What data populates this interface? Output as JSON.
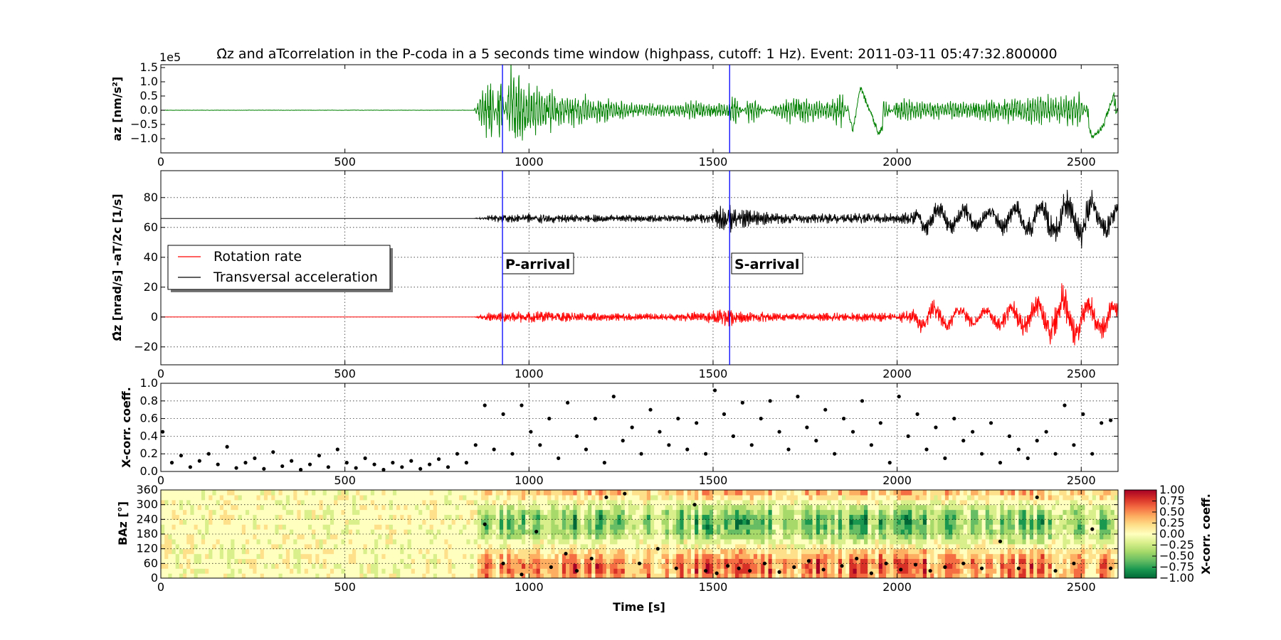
{
  "chart_data": [
    {
      "type": "line",
      "panel": "vertical-acceleration",
      "title": "Ω̇z and aTcorrelation in the P-coda in a 5 seconds time window (highpass, cutoff: 1 Hz). Event: 2011-03-11 05:47:32.800000",
      "ylabel": "az [nm/s²]",
      "offset_label": "1e5",
      "xlim": [
        0,
        2600
      ],
      "ylim": [
        -1.5,
        1.6
      ],
      "x_ticks": [
        "0",
        "500",
        "1000",
        "1500",
        "2000",
        "2500"
      ],
      "y_ticks": [
        "−1.0",
        "−0.5",
        "0.0",
        "0.5",
        "1.0",
        "1.5"
      ],
      "vlines_x": [
        928,
        1545
      ],
      "line_color": "#008000",
      "series": [
        {
          "x": [
            0,
            850,
            870,
            900,
            920,
            950,
            1000,
            1100,
            1200,
            1300,
            1400,
            1450,
            1500,
            1545,
            1560,
            1600,
            1700,
            1800,
            1850,
            1880,
            1900,
            1950,
            2000,
            2100,
            2200,
            2300,
            2400,
            2450,
            2500,
            2530,
            2560,
            2590,
            2600
          ],
          "y": [
            0,
            0,
            0.6,
            1.3,
            -1.4,
            1.5,
            0.9,
            0.6,
            0.4,
            0.25,
            0.2,
            0.3,
            0.25,
            0.3,
            0.6,
            -0.5,
            0.5,
            0.3,
            0.6,
            -0.8,
            0.9,
            -0.9,
            0.4,
            0.3,
            0.3,
            0.4,
            0.5,
            0.4,
            0.6,
            -1.1,
            -0.6,
            0.7,
            0.0
          ]
        }
      ]
    },
    {
      "type": "line",
      "panel": "rotation-vs-transverse",
      "ylabel": "Ω̇z [nrad/s] -aT/2c [1/s]",
      "xlim": [
        0,
        2600
      ],
      "ylim": [
        -32,
        98
      ],
      "grid": true,
      "x_ticks": [
        "0",
        "500",
        "1000",
        "1500",
        "2000",
        "2500"
      ],
      "y_ticks": [
        "−20",
        "0",
        "20",
        "40",
        "60",
        "80"
      ],
      "legend_placement": "center-left",
      "legend": [
        "Rotation rate",
        "Transversal acceleration"
      ],
      "annotations": [
        "P-arrival",
        "S-arrival"
      ],
      "vlines_x": [
        928,
        1545
      ],
      "series": [
        {
          "name": "Transversal acceleration",
          "color": "#000000",
          "baseline": 66,
          "x": [
            0,
            850,
            900,
            1000,
            1200,
            1400,
            1500,
            1520,
            1545,
            1560,
            1700,
            2000,
            2080,
            2150,
            2250,
            2350,
            2400,
            2450,
            2480,
            2500,
            2550,
            2600
          ],
          "amp": [
            0,
            0,
            3,
            4,
            3,
            3,
            4,
            10,
            12,
            8,
            4,
            4,
            8,
            7,
            6,
            9,
            10,
            14,
            12,
            14,
            10,
            8
          ]
        },
        {
          "name": "Rotation rate",
          "color": "#ff0000",
          "baseline": 0,
          "x": [
            0,
            850,
            900,
            1000,
            1200,
            1400,
            1500,
            1520,
            1545,
            1560,
            1700,
            2000,
            2080,
            2150,
            2250,
            2350,
            2400,
            2450,
            2480,
            2500,
            2550,
            2600
          ],
          "amp": [
            0,
            0,
            4,
            5,
            3,
            3,
            5,
            7,
            8,
            5,
            3,
            4,
            8,
            6,
            5,
            9,
            10,
            14,
            12,
            14,
            10,
            8
          ]
        }
      ]
    },
    {
      "type": "scatter",
      "panel": "correlation-coefficient",
      "ylabel": "X-corr. coeff.",
      "xlim": [
        0,
        2600
      ],
      "ylim": [
        0,
        1.0
      ],
      "grid": true,
      "x_ticks": [
        "0",
        "500",
        "1000",
        "1500",
        "2000",
        "2500"
      ],
      "y_ticks": [
        "0.0",
        "0.2",
        "0.4",
        "0.6",
        "0.8",
        "1.0"
      ],
      "point_color": "#000000",
      "x": [
        5,
        30,
        55,
        80,
        105,
        130,
        155,
        180,
        205,
        230,
        255,
        280,
        305,
        330,
        355,
        380,
        405,
        430,
        455,
        480,
        505,
        530,
        555,
        580,
        605,
        630,
        655,
        680,
        705,
        730,
        755,
        780,
        805,
        830,
        855,
        880,
        905,
        930,
        955,
        980,
        1005,
        1030,
        1055,
        1080,
        1105,
        1130,
        1155,
        1180,
        1205,
        1230,
        1255,
        1280,
        1305,
        1330,
        1355,
        1380,
        1405,
        1430,
        1455,
        1480,
        1505,
        1530,
        1555,
        1580,
        1605,
        1630,
        1655,
        1680,
        1705,
        1730,
        1755,
        1780,
        1805,
        1830,
        1855,
        1880,
        1905,
        1930,
        1955,
        1980,
        2005,
        2030,
        2055,
        2080,
        2105,
        2130,
        2155,
        2180,
        2205,
        2230,
        2255,
        2280,
        2305,
        2330,
        2355,
        2380,
        2405,
        2430,
        2455,
        2480,
        2505,
        2530,
        2555,
        2580
      ],
      "y": [
        0.45,
        0.1,
        0.18,
        0.05,
        0.12,
        0.2,
        0.08,
        0.28,
        0.04,
        0.1,
        0.15,
        0.03,
        0.22,
        0.06,
        0.12,
        0.02,
        0.08,
        0.18,
        0.05,
        0.25,
        0.1,
        0.04,
        0.15,
        0.08,
        0.02,
        0.1,
        0.05,
        0.12,
        0.03,
        0.08,
        0.14,
        0.05,
        0.2,
        0.1,
        0.3,
        0.75,
        0.25,
        0.65,
        0.2,
        0.75,
        0.45,
        0.3,
        0.6,
        0.15,
        0.78,
        0.4,
        0.25,
        0.6,
        0.1,
        0.85,
        0.35,
        0.5,
        0.2,
        0.7,
        0.45,
        0.3,
        0.6,
        0.25,
        0.55,
        0.2,
        0.92,
        0.65,
        0.4,
        0.78,
        0.3,
        0.6,
        0.8,
        0.45,
        0.25,
        0.85,
        0.5,
        0.35,
        0.7,
        0.2,
        0.6,
        0.45,
        0.8,
        0.3,
        0.55,
        0.1,
        0.85,
        0.4,
        0.65,
        0.25,
        0.5,
        0.15,
        0.6,
        0.35,
        0.45,
        0.2,
        0.55,
        0.1,
        0.4,
        0.25,
        0.15,
        0.35,
        0.45,
        0.2,
        0.75,
        0.3,
        0.65,
        0.2,
        0.55,
        0.58
      ]
    },
    {
      "type": "heatmap",
      "panel": "backazimuth-correlation",
      "ylabel": "BAz [°]",
      "xlabel": "Time [s]",
      "xlim": [
        0,
        2600
      ],
      "ylim": [
        0,
        360
      ],
      "x_ticks": [
        "0",
        "500",
        "1000",
        "1500",
        "2000",
        "2500"
      ],
      "y_ticks": [
        "0",
        "60",
        "120",
        "180",
        "240",
        "300",
        "360"
      ],
      "colorbar_label": "X-corr. coeff.",
      "colorbar_range": [
        -1.0,
        1.0
      ],
      "colorbar_ticks": [
        "1.00",
        "0.75",
        "0.50",
        "0.25",
        "0.00",
        "−0.25",
        "−0.50",
        "−0.75",
        "−1.00"
      ],
      "colormap": [
        "#006837",
        "#1a9850",
        "#66bd63",
        "#a6d96a",
        "#d9ef8b",
        "#ffffbf",
        "#fee08b",
        "#fdae61",
        "#f46d43",
        "#d73027",
        "#a50026"
      ],
      "maxima_x": [
        880,
        930,
        980,
        1020,
        1060,
        1100,
        1130,
        1170,
        1210,
        1260,
        1300,
        1350,
        1400,
        1450,
        1480,
        1510,
        1540,
        1570,
        1600,
        1640,
        1680,
        1720,
        1760,
        1800,
        1850,
        1890,
        1930,
        1970,
        2010,
        2050,
        2090,
        2130,
        2180,
        2230,
        2280,
        2330,
        2380,
        2430,
        2480,
        2530,
        2580
      ],
      "maxima_y": [
        220,
        60,
        15,
        190,
        45,
        100,
        30,
        80,
        330,
        345,
        60,
        120,
        40,
        300,
        30,
        20,
        50,
        40,
        30,
        60,
        25,
        45,
        70,
        35,
        50,
        80,
        20,
        60,
        35,
        55,
        30,
        45,
        60,
        40,
        150,
        40,
        330,
        30,
        60,
        200,
        40
      ]
    }
  ]
}
